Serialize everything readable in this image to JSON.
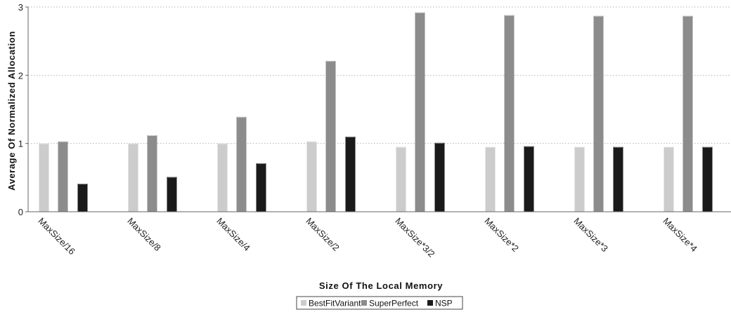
{
  "chart_data": {
    "type": "bar",
    "title": "",
    "xlabel": "Size Of The Local Memory",
    "ylabel": "Average Of Normalized Allocation",
    "ylim": [
      0,
      3
    ],
    "yticks": [
      0,
      1,
      2,
      3
    ],
    "grid": true,
    "legend_position": "bottom",
    "categories": [
      "MaxSize/16",
      "MaxSize/8",
      "MaxSize/4",
      "MaxSize/2",
      "MaxSize*3/2",
      "MaxSize*2",
      "MaxSize*3",
      "MaxSize*4"
    ],
    "series": [
      {
        "name": "BestFitVariant",
        "color": "#cccccc",
        "values": [
          1.0,
          1.0,
          1.0,
          1.03,
          0.95,
          0.95,
          0.95,
          0.95
        ]
      },
      {
        "name": "SuperPerfect",
        "color": "#8c8c8c",
        "values": [
          1.03,
          1.12,
          1.39,
          2.21,
          2.92,
          2.88,
          2.87,
          2.87
        ]
      },
      {
        "name": "NSP",
        "color": "#1a1a1a",
        "values": [
          0.41,
          0.51,
          0.71,
          1.1,
          1.01,
          0.96,
          0.95,
          0.95
        ]
      }
    ]
  }
}
